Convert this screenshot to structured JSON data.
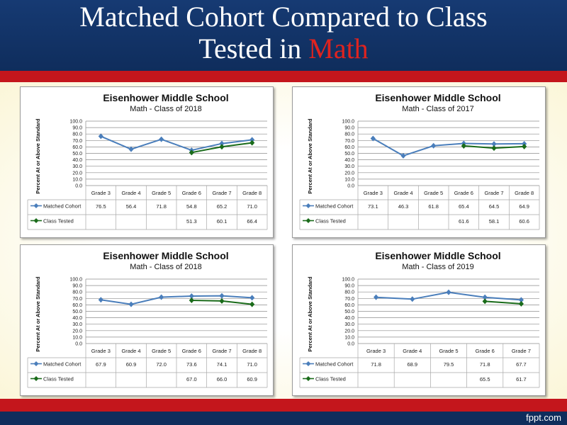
{
  "slide": {
    "title_line1": "Matched Cohort Compared to Class",
    "title_line2_prefix": "Tested in ",
    "title_line2_accent": "Math",
    "brand": "fppt.com"
  },
  "colors": {
    "matched": "#4a7ebb",
    "tested": "#1a6b1a",
    "title_accent": "#e0231f",
    "band": "#c4161c",
    "navy": "#0f2d5c"
  },
  "chart_data": [
    {
      "type": "line",
      "title": "Eisenhower Middle School",
      "subtitle": "Math - Class of 2018",
      "ylabel": "Percent At or Above Standard",
      "ylim": [
        0,
        100
      ],
      "yticks": [
        "100.0",
        "90.0",
        "80.0",
        "70.0",
        "60.0",
        "50.0",
        "40.0",
        "30.0",
        "20.0",
        "10.0",
        "0.0"
      ],
      "categories": [
        "Grade 3",
        "Grade 4",
        "Grade 5",
        "Grade 6",
        "Grade 7",
        "Grade 8"
      ],
      "series": [
        {
          "name": "Matched Cohort",
          "values": [
            76.5,
            56.4,
            71.8,
            54.8,
            65.2,
            71.0
          ],
          "labels": [
            "76.5",
            "56.4",
            "71.8",
            "54.8",
            "65.2",
            "71.0"
          ]
        },
        {
          "name": "Class Tested",
          "values": [
            null,
            null,
            null,
            51.3,
            60.1,
            66.4
          ],
          "labels": [
            "",
            "",
            "",
            "51.3",
            "60.1",
            "66.4"
          ]
        }
      ]
    },
    {
      "type": "line",
      "title": "Eisenhower Middle School",
      "subtitle": "Math - Class of 2017",
      "ylabel": "Percent At or Above Standard",
      "ylim": [
        0,
        100
      ],
      "yticks": [
        "100.0",
        "90.0",
        "80.0",
        "70.0",
        "60.0",
        "50.0",
        "40.0",
        "30.0",
        "20.0",
        "10.0",
        "0.0"
      ],
      "categories": [
        "Grade 3",
        "Grade 4",
        "Grade 5",
        "Grade 6",
        "Grade 7",
        "Grade 8"
      ],
      "series": [
        {
          "name": "Matched Cohort",
          "values": [
            73.1,
            46.3,
            61.8,
            65.4,
            64.5,
            64.9
          ],
          "labels": [
            "73.1",
            "46.3",
            "61.8",
            "65.4",
            "64.5",
            "64.9"
          ]
        },
        {
          "name": "Class Tested",
          "values": [
            null,
            null,
            null,
            61.6,
            58.1,
            60.6
          ],
          "labels": [
            "",
            "",
            "",
            "61.6",
            "58.1",
            "60.6"
          ]
        }
      ]
    },
    {
      "type": "line",
      "title": "Eisenhower Middle School",
      "subtitle": "Math - Class of 2018",
      "ylabel": "Percent At or Above Standard",
      "ylim": [
        0,
        100
      ],
      "yticks": [
        "100.0",
        "90.0",
        "80.0",
        "70.0",
        "60.0",
        "50.0",
        "40.0",
        "30.0",
        "20.0",
        "10.0",
        "0.0"
      ],
      "categories": [
        "Grade 3",
        "Grade 4",
        "Grade 5",
        "Grade 6",
        "Grade 7",
        "Grade 8"
      ],
      "series": [
        {
          "name": "Matched Cohort",
          "values": [
            67.9,
            60.9,
            72.0,
            73.6,
            74.1,
            71.0
          ],
          "labels": [
            "67.9",
            "60.9",
            "72.0",
            "73.6",
            "74.1",
            "71.0"
          ]
        },
        {
          "name": "Class Tested",
          "values": [
            null,
            null,
            null,
            67.0,
            66.0,
            60.9
          ],
          "labels": [
            "",
            "",
            "",
            "67.0",
            "66.0",
            "60.9"
          ]
        }
      ]
    },
    {
      "type": "line",
      "title": "Eisenhower Middle School",
      "subtitle": "Math - Class of 2019",
      "ylabel": "Percent At or Above Standard",
      "ylim": [
        0,
        100
      ],
      "yticks": [
        "100.0",
        "90.0",
        "80.0",
        "70.0",
        "60.0",
        "50.0",
        "40.0",
        "30.0",
        "20.0",
        "10.0",
        "0.0"
      ],
      "categories": [
        "Grade 3",
        "Grade 4",
        "Grade 5",
        "Grade 6",
        "Grade 7"
      ],
      "series": [
        {
          "name": "Matched Cohort",
          "values": [
            71.8,
            68.9,
            79.5,
            71.8,
            67.7
          ],
          "labels": [
            "71.8",
            "68.9",
            "79.5",
            "71.8",
            "67.7"
          ]
        },
        {
          "name": "Class Tested",
          "values": [
            null,
            null,
            null,
            65.5,
            61.7
          ],
          "labels": [
            "",
            "",
            "",
            "65.5",
            "61.7"
          ]
        }
      ]
    }
  ]
}
